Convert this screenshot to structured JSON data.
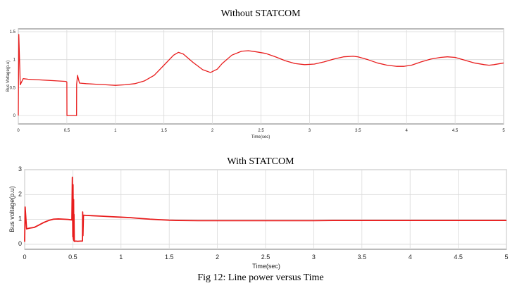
{
  "figure_caption": "Fig 12: Line power versus Time",
  "chart_data": [
    {
      "type": "line",
      "title": "Without STATCOM",
      "xlabel": "Time(sec)",
      "ylabel": "Bus Voltage(p.u)",
      "xlim": [
        0,
        5
      ],
      "ylim": [
        -0.15,
        1.55
      ],
      "x_ticks": [
        "0",
        "0.5",
        "1",
        "1.5",
        "2",
        "2.5",
        "3",
        "3.5",
        "4",
        "4.5",
        "5"
      ],
      "y_ticks": [
        "0",
        "0.5",
        "1",
        "1.5"
      ],
      "grid": true,
      "series": [
        {
          "color": "#e81c1c",
          "x": [
            0,
            0.005,
            0.02,
            0.05,
            0.1,
            0.2,
            0.3,
            0.4,
            0.49,
            0.5,
            0.501,
            0.6,
            0.601,
            0.61,
            0.63,
            0.7,
            0.8,
            0.9,
            1.0,
            1.1,
            1.2,
            1.3,
            1.4,
            1.5,
            1.6,
            1.65,
            1.7,
            1.8,
            1.9,
            1.98,
            2.05,
            2.1,
            2.2,
            2.3,
            2.37,
            2.45,
            2.55,
            2.65,
            2.75,
            2.85,
            2.95,
            3.05,
            3.15,
            3.25,
            3.35,
            3.45,
            3.5,
            3.6,
            3.7,
            3.8,
            3.9,
            3.97,
            4.05,
            4.15,
            4.25,
            4.35,
            4.42,
            4.5,
            4.6,
            4.7,
            4.8,
            4.85,
            4.9,
            5.0
          ],
          "values": [
            0.0,
            1.45,
            0.55,
            0.66,
            0.65,
            0.64,
            0.63,
            0.62,
            0.61,
            0.6,
            0.0,
            0.0,
            0.56,
            0.72,
            0.58,
            0.57,
            0.56,
            0.55,
            0.54,
            0.55,
            0.57,
            0.62,
            0.72,
            0.9,
            1.08,
            1.13,
            1.1,
            0.95,
            0.82,
            0.77,
            0.83,
            0.93,
            1.08,
            1.15,
            1.16,
            1.14,
            1.11,
            1.05,
            0.98,
            0.93,
            0.91,
            0.92,
            0.96,
            1.01,
            1.05,
            1.06,
            1.05,
            1.0,
            0.94,
            0.9,
            0.88,
            0.88,
            0.9,
            0.96,
            1.01,
            1.04,
            1.05,
            1.04,
            0.99,
            0.94,
            0.91,
            0.9,
            0.91,
            0.94
          ]
        }
      ]
    },
    {
      "type": "line",
      "title": "With STATCOM",
      "xlabel": "Time(sec)",
      "ylabel": "Bus voltage(p.u)",
      "xlim": [
        0,
        5
      ],
      "ylim": [
        -0.2,
        3
      ],
      "x_ticks": [
        "0",
        "0.5",
        "1",
        "1.5",
        "2",
        "2.5",
        "3",
        "3.5",
        "4",
        "4.5",
        "5"
      ],
      "y_ticks": [
        "0",
        "1",
        "2",
        "3"
      ],
      "grid": true,
      "series": [
        {
          "color": "#e81c1c",
          "x": [
            0,
            0.005,
            0.02,
            0.05,
            0.1,
            0.15,
            0.2,
            0.25,
            0.3,
            0.35,
            0.4,
            0.45,
            0.49,
            0.495,
            0.5,
            0.502,
            0.505,
            0.508,
            0.51,
            0.512,
            0.515,
            0.52,
            0.53,
            0.55,
            0.58,
            0.6,
            0.602,
            0.605,
            0.61,
            0.65,
            0.7,
            0.8,
            0.9,
            1.0,
            1.1,
            1.2,
            1.3,
            1.4,
            1.5,
            1.6,
            1.8,
            2.0,
            2.2,
            2.5,
            2.8,
            3.0,
            3.2,
            3.5,
            3.8,
            4.0,
            4.2,
            4.5,
            4.8,
            5.0
          ],
          "values": [
            0.1,
            1.5,
            0.62,
            0.65,
            0.68,
            0.78,
            0.88,
            0.96,
            1.01,
            1.02,
            1.01,
            1.0,
            0.98,
            2.7,
            0.3,
            2.4,
            0.2,
            1.8,
            0.15,
            1.2,
            0.12,
            0.12,
            0.13,
            0.12,
            0.13,
            0.13,
            1.3,
            0.35,
            1.17,
            1.16,
            1.15,
            1.13,
            1.11,
            1.09,
            1.07,
            1.04,
            1.01,
            0.99,
            0.97,
            0.96,
            0.95,
            0.95,
            0.95,
            0.95,
            0.95,
            0.95,
            0.96,
            0.96,
            0.96,
            0.96,
            0.96,
            0.96,
            0.96,
            0.96
          ]
        }
      ]
    }
  ]
}
